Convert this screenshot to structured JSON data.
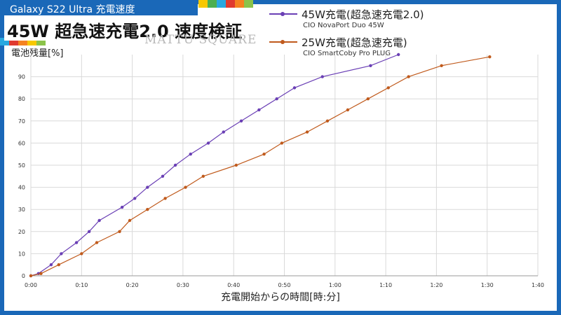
{
  "header": {
    "subtitle": "Galaxy S22 Ultra 充電速度",
    "title": "45W 超急速充電2.0 速度検証",
    "watermark": "MATTU SQUARE"
  },
  "colors": {
    "frame": "#1a68b8",
    "series_45w": "#6a3fb5",
    "series_25w": "#c05a1c",
    "stripes": [
      "#f7c800",
      "#4caf50",
      "#29a8e0",
      "#e03a2f",
      "#f58220",
      "#8bc34a"
    ]
  },
  "legend": [
    {
      "name": "45W充電(超急速充電2.0)",
      "sub": "CIO NovaPort Duo 45W",
      "color": "#6a3fb5"
    },
    {
      "name": "25W充電(超急速充電)",
      "sub": "CIO SmartCoby Pro PLUG",
      "color": "#c05a1c"
    }
  ],
  "chart_data": {
    "type": "line",
    "ylabel": "電池残量[%]",
    "xlabel": "充電開始からの時間[時:分]",
    "xlim": [
      0,
      100
    ],
    "ylim": [
      0,
      100
    ],
    "grid": true,
    "legend_position": "top",
    "x_ticks": [
      "0:00",
      "0:10",
      "0:20",
      "0:30",
      "0:40",
      "0:50",
      "1:00",
      "1:10",
      "1:20",
      "1:30",
      "1:40"
    ],
    "y_ticks": [
      "0",
      "10",
      "20",
      "30",
      "40",
      "50",
      "60",
      "70",
      "80",
      "90"
    ],
    "series": [
      {
        "name": "45W充電(超急速充電2.0)",
        "x": [
          0,
          1.5,
          4,
          6,
          9,
          11.5,
          13.5,
          18,
          20.5,
          23,
          26,
          28.5,
          31.5,
          35,
          38,
          41.5,
          45,
          48.5,
          52,
          57.5,
          67,
          72.5
        ],
        "y": [
          0,
          1,
          5,
          10,
          15,
          20,
          25,
          31,
          35,
          40,
          45,
          50,
          55,
          60,
          65,
          70,
          75,
          80,
          85,
          90,
          95,
          100
        ]
      },
      {
        "name": "25W充電(超急速充電)",
        "x": [
          0,
          2,
          5.5,
          10,
          13,
          17.5,
          19.5,
          23,
          26.5,
          30.5,
          34,
          40.5,
          46,
          49.5,
          54.5,
          58.5,
          62.5,
          66.5,
          70.5,
          74.5,
          81,
          90.5
        ],
        "y": [
          0,
          1,
          5,
          10,
          15,
          20,
          25,
          30,
          35,
          40,
          45,
          50,
          55,
          60,
          65,
          70,
          75,
          80,
          85,
          90,
          95,
          99
        ]
      }
    ]
  }
}
